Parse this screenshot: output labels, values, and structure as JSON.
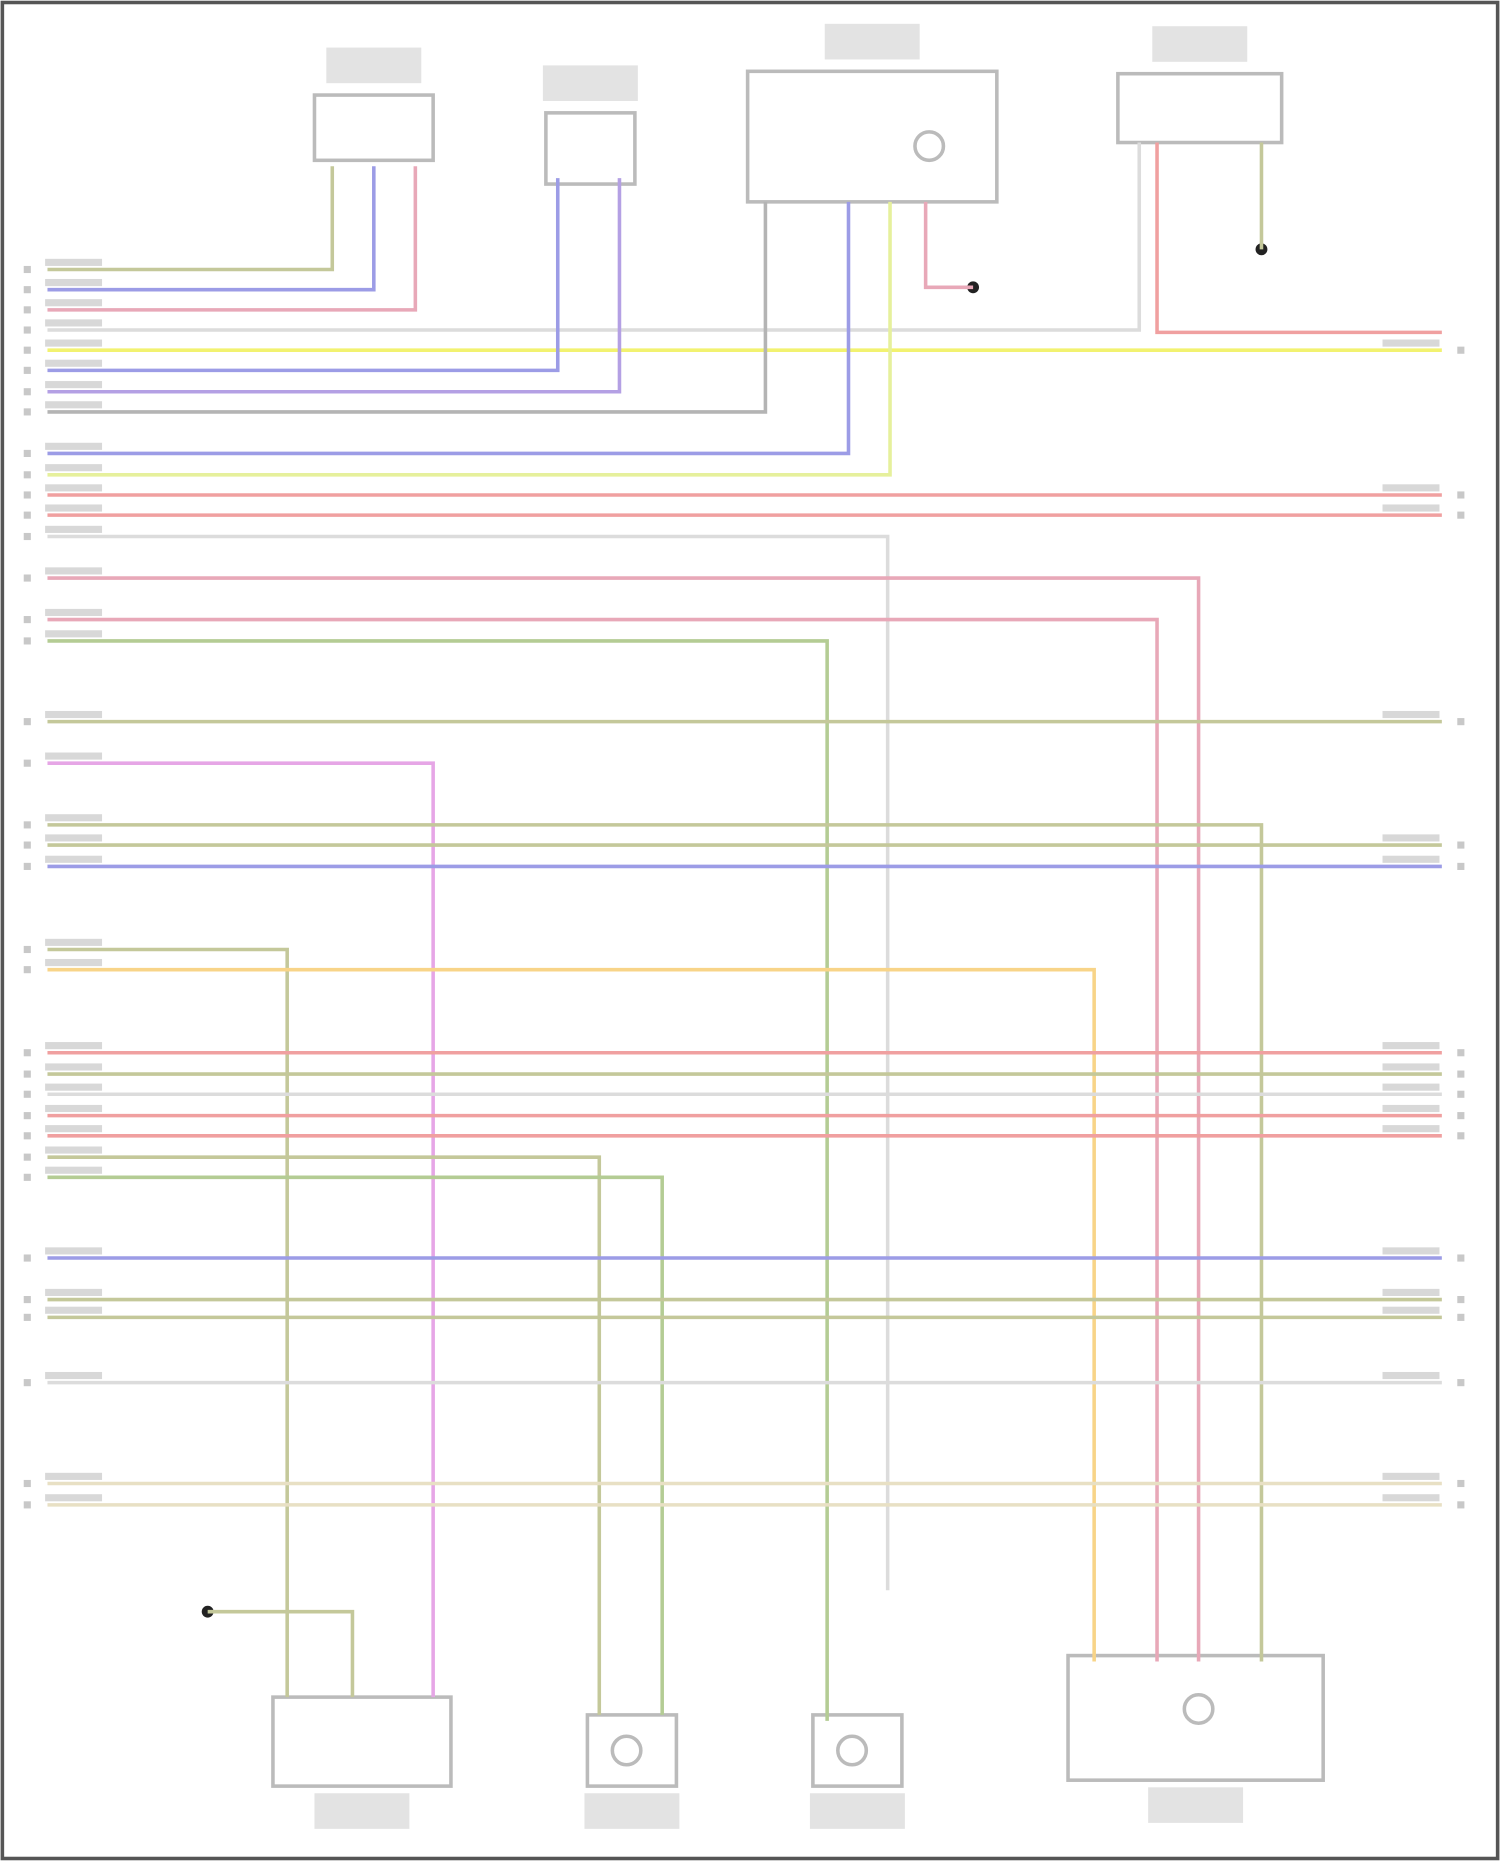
{
  "diagram": {
    "type": "wiring-diagram",
    "legible_text": false,
    "colors": {
      "frame": "#555555",
      "component_outline": "#bbbbbb",
      "label_block": "#c8c8c8",
      "olive": "#c4c89a",
      "blue": "#9c9ce6",
      "pink": "#e8a8b8",
      "light_gray": "#dcdcdc",
      "yellow": "#f2f270",
      "purple": "#b4a0e4",
      "gray": "#b4b4b4",
      "yellow_green": "#e6f09c",
      "red": "#f0a0a0",
      "magenta": "#e6a6e6",
      "orange": "#f8d488",
      "green": "#b4cc94",
      "beige": "#e8e0c4"
    },
    "wire_colors": [
      "olive",
      "blue",
      "pink",
      "light_gray",
      "yellow",
      "blue",
      "purple",
      "gray",
      "blue",
      "yellow_green",
      "red",
      "red",
      "light_gray",
      "pink",
      "pink",
      "green",
      "olive",
      "magenta",
      "olive",
      "olive",
      "blue",
      "olive",
      "orange",
      "red",
      "olive",
      "light_gray",
      "red",
      "red",
      "olive",
      "green",
      "blue",
      "olive",
      "olive",
      "light_gray",
      "beige",
      "beige"
    ],
    "components": [
      "pressure-sensor",
      "temperature-sensor",
      "left-fan-module",
      "cooling-fan-relay",
      "ac-compressor",
      "left-fan-motor",
      "right-fan-motor",
      "right-fan-module"
    ],
    "ground_points": 3
  }
}
